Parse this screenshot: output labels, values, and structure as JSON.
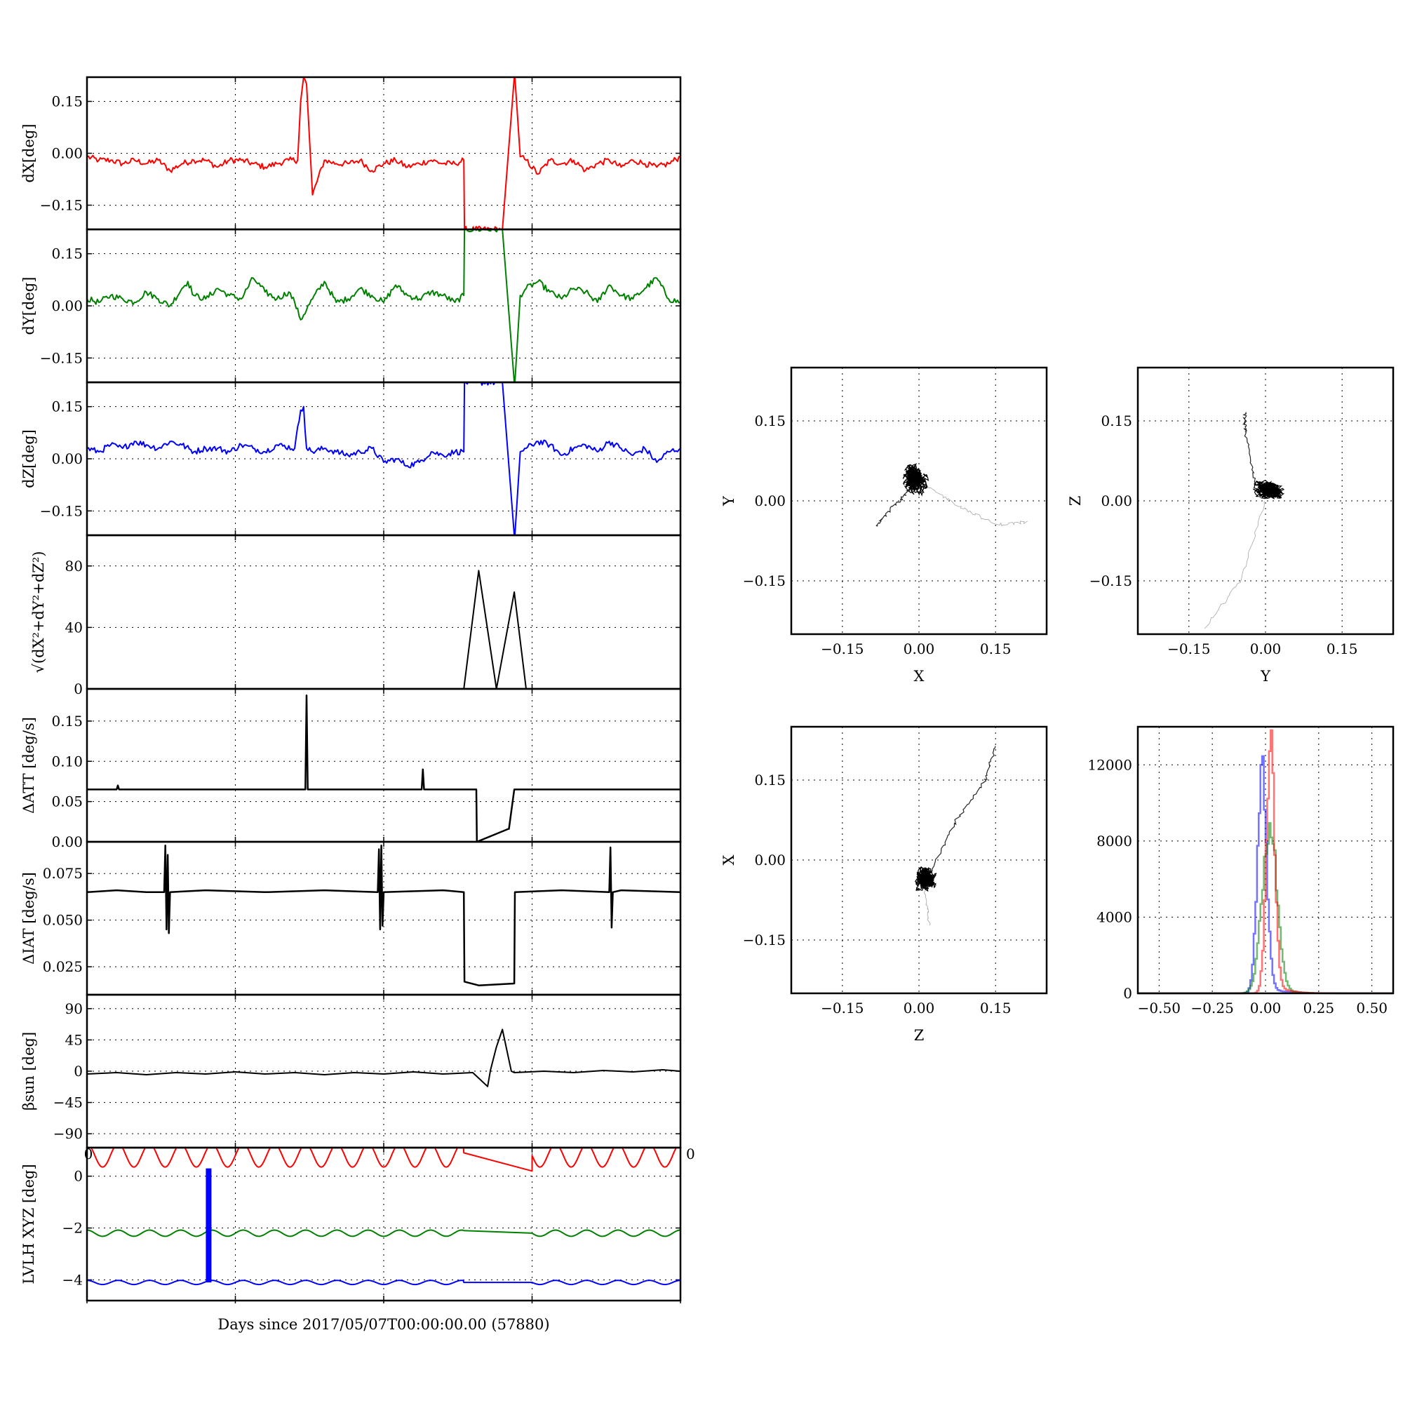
{
  "figure": {
    "xlabel": "Days since 2017/05/07T00:00:00.00 (57880)"
  },
  "chart_data": [
    {
      "type": "line",
      "ylabel": "dX[deg]",
      "ylim": [
        -0.22,
        0.22
      ],
      "yticks": [
        "0.15",
        "0.00",
        "−0.15"
      ],
      "yticks_values": [
        0.15,
        0.0,
        -0.15
      ],
      "xlim": [
        0,
        1
      ],
      "color": "#ff0000",
      "series": [
        {
          "x": [
            0.0,
            0.02,
            0.04,
            0.06,
            0.08,
            0.1,
            0.12,
            0.14,
            0.16,
            0.18,
            0.2,
            0.22,
            0.24,
            0.26,
            0.28,
            0.3,
            0.32,
            0.34,
            0.355,
            0.36,
            0.365,
            0.37,
            0.38,
            0.4,
            0.42,
            0.44,
            0.46,
            0.48,
            0.5,
            0.52,
            0.54,
            0.56,
            0.58,
            0.6,
            0.62,
            0.635,
            0.636,
            0.7,
            0.72,
            0.721,
            0.73,
            0.74,
            0.76,
            0.78,
            0.8,
            0.82,
            0.84,
            0.86,
            0.88,
            0.9,
            0.92,
            0.94,
            0.96,
            0.98,
            1.0
          ],
          "y": [
            -0.01,
            -0.02,
            -0.02,
            -0.03,
            -0.02,
            -0.03,
            -0.02,
            -0.05,
            -0.03,
            -0.02,
            -0.02,
            -0.04,
            -0.02,
            -0.02,
            -0.03,
            -0.04,
            -0.03,
            -0.02,
            -0.02,
            0.15,
            0.22,
            0.2,
            -0.12,
            -0.02,
            -0.03,
            -0.03,
            -0.02,
            -0.05,
            -0.03,
            -0.02,
            -0.04,
            -0.03,
            -0.02,
            -0.03,
            -0.03,
            -0.02,
            -0.22,
            -0.22,
            0.22,
            0.22,
            -0.01,
            -0.02,
            -0.06,
            -0.02,
            -0.03,
            -0.02,
            -0.05,
            -0.03,
            -0.02,
            -0.04,
            -0.02,
            -0.03,
            -0.04,
            -0.03,
            -0.01
          ]
        }
      ]
    },
    {
      "type": "line",
      "ylabel": "dY[deg]",
      "ylim": [
        -0.22,
        0.22
      ],
      "yticks": [
        "0.15",
        "0.00",
        "−0.15"
      ],
      "yticks_values": [
        0.15,
        0.0,
        -0.15
      ],
      "xlim": [
        0,
        1
      ],
      "color": "#008000",
      "series": [
        {
          "x": [
            0.0,
            0.02,
            0.04,
            0.06,
            0.08,
            0.1,
            0.12,
            0.14,
            0.16,
            0.17,
            0.18,
            0.2,
            0.22,
            0.24,
            0.26,
            0.28,
            0.3,
            0.32,
            0.34,
            0.35,
            0.36,
            0.38,
            0.4,
            0.42,
            0.44,
            0.46,
            0.48,
            0.5,
            0.52,
            0.54,
            0.56,
            0.58,
            0.6,
            0.62,
            0.635,
            0.636,
            0.7,
            0.72,
            0.721,
            0.73,
            0.74,
            0.76,
            0.78,
            0.8,
            0.82,
            0.84,
            0.86,
            0.88,
            0.9,
            0.92,
            0.94,
            0.96,
            0.98,
            1.0
          ],
          "y": [
            0.02,
            0.01,
            0.03,
            0.02,
            0.01,
            0.04,
            0.02,
            0.0,
            0.05,
            0.07,
            0.03,
            0.02,
            0.05,
            0.03,
            0.02,
            0.08,
            0.04,
            0.02,
            0.04,
            0.01,
            -0.04,
            0.02,
            0.07,
            0.01,
            0.02,
            0.05,
            0.03,
            0.01,
            0.06,
            0.03,
            0.02,
            0.04,
            0.03,
            0.01,
            0.03,
            0.22,
            0.22,
            -0.22,
            -0.22,
            0.03,
            0.05,
            0.07,
            0.04,
            0.02,
            0.05,
            0.04,
            0.01,
            0.06,
            0.03,
            0.02,
            0.05,
            0.08,
            0.02,
            0.01
          ]
        }
      ]
    },
    {
      "type": "line",
      "ylabel": "dZ[deg]",
      "ylim": [
        -0.22,
        0.22
      ],
      "yticks": [
        "0.15",
        "0.00",
        "−0.15"
      ],
      "yticks_values": [
        0.15,
        0.0,
        -0.15
      ],
      "xlim": [
        0,
        1
      ],
      "color": "#0000ff",
      "series": [
        {
          "x": [
            0.0,
            0.02,
            0.04,
            0.06,
            0.08,
            0.1,
            0.12,
            0.14,
            0.16,
            0.18,
            0.2,
            0.22,
            0.24,
            0.26,
            0.28,
            0.3,
            0.32,
            0.35,
            0.36,
            0.365,
            0.37,
            0.38,
            0.4,
            0.42,
            0.44,
            0.46,
            0.48,
            0.5,
            0.52,
            0.54,
            0.56,
            0.58,
            0.6,
            0.62,
            0.635,
            0.636,
            0.7,
            0.72,
            0.721,
            0.73,
            0.74,
            0.76,
            0.78,
            0.8,
            0.82,
            0.84,
            0.86,
            0.88,
            0.9,
            0.92,
            0.94,
            0.96,
            0.98,
            1.0
          ],
          "y": [
            0.03,
            0.02,
            0.04,
            0.03,
            0.05,
            0.04,
            0.03,
            0.05,
            0.04,
            0.02,
            0.03,
            0.03,
            0.02,
            0.04,
            0.03,
            0.02,
            0.04,
            0.03,
            0.14,
            0.15,
            0.03,
            0.02,
            0.03,
            0.02,
            0.01,
            0.02,
            0.03,
            -0.01,
            0.0,
            -0.02,
            -0.01,
            0.02,
            0.01,
            0.02,
            0.02,
            0.22,
            0.22,
            -0.22,
            -0.22,
            0.02,
            0.03,
            0.05,
            0.04,
            0.01,
            0.03,
            0.04,
            0.02,
            0.05,
            0.03,
            0.01,
            0.03,
            -0.01,
            0.02,
            0.03
          ]
        }
      ]
    },
    {
      "type": "line",
      "ylabel": "√(dX²+dY²+dZ²)",
      "ylim": [
        0,
        100
      ],
      "yticks": [
        "80",
        "40",
        "0"
      ],
      "yticks_values": [
        80,
        40,
        0
      ],
      "xlim": [
        0,
        1
      ],
      "color": "#000000",
      "series": [
        {
          "x": [
            0.0,
            0.635,
            0.66,
            0.69,
            0.72,
            0.74,
            1.0
          ],
          "y": [
            0,
            0,
            77,
            0,
            63,
            0,
            0
          ]
        }
      ]
    },
    {
      "type": "line",
      "ylabel": "ΔATT [deg/s]",
      "ylim": [
        0,
        0.19
      ],
      "yticks": [
        "0.15",
        "0.10",
        "0.05",
        "0.00"
      ],
      "yticks_values": [
        0.15,
        0.1,
        0.05,
        0.0
      ],
      "xlim": [
        0,
        1
      ],
      "color": "#000000",
      "series": [
        {
          "x": [
            0.0,
            0.05,
            0.052,
            0.054,
            0.1,
            0.2,
            0.3,
            0.368,
            0.37,
            0.372,
            0.4,
            0.5,
            0.564,
            0.566,
            0.568,
            0.6,
            0.656,
            0.657,
            0.71,
            0.711,
            0.72,
            0.8,
            0.9,
            1.0
          ],
          "y": [
            0.065,
            0.065,
            0.07,
            0.065,
            0.065,
            0.065,
            0.065,
            0.065,
            0.182,
            0.065,
            0.065,
            0.065,
            0.065,
            0.09,
            0.065,
            0.065,
            0.065,
            0.0,
            0.016,
            0.016,
            0.065,
            0.065,
            0.065,
            0.065
          ]
        }
      ]
    },
    {
      "type": "line",
      "ylabel": "ΔIAT [deg/s]",
      "ylim": [
        0.01,
        0.092
      ],
      "yticks": [
        "0.075",
        "0.050",
        "0.025"
      ],
      "yticks_values": [
        0.075,
        0.05,
        0.025
      ],
      "xlim": [
        0,
        1
      ],
      "color": "#000000",
      "series": [
        {
          "x": [
            0.0,
            0.05,
            0.1,
            0.13,
            0.132,
            0.134,
            0.136,
            0.138,
            0.14,
            0.2,
            0.3,
            0.4,
            0.49,
            0.492,
            0.494,
            0.496,
            0.498,
            0.5,
            0.6,
            0.635,
            0.636,
            0.66,
            0.72,
            0.721,
            0.8,
            0.88,
            0.882,
            0.884,
            0.886,
            0.9,
            1.0
          ],
          "y": [
            0.065,
            0.066,
            0.065,
            0.065,
            0.09,
            0.045,
            0.085,
            0.043,
            0.065,
            0.066,
            0.065,
            0.066,
            0.065,
            0.088,
            0.045,
            0.09,
            0.047,
            0.065,
            0.066,
            0.065,
            0.017,
            0.015,
            0.016,
            0.065,
            0.066,
            0.065,
            0.089,
            0.046,
            0.065,
            0.066,
            0.065
          ]
        }
      ]
    },
    {
      "type": "line",
      "ylabel": "βsun [deg]",
      "ylim": [
        -110,
        110
      ],
      "yticks": [
        "90",
        "45",
        "0",
        "−45",
        "−90"
      ],
      "yticks_values": [
        90,
        45,
        0,
        -45,
        -90
      ],
      "xlim": [
        0,
        1
      ],
      "color": "#000000",
      "series": [
        {
          "x": [
            0.0,
            0.05,
            0.1,
            0.15,
            0.2,
            0.25,
            0.3,
            0.35,
            0.4,
            0.45,
            0.5,
            0.55,
            0.6,
            0.65,
            0.675,
            0.68,
            0.69,
            0.7,
            0.715,
            0.72,
            0.77,
            0.82,
            0.87,
            0.92,
            0.97,
            1.0
          ],
          "y": [
            -4,
            -2,
            -5,
            -2,
            -4,
            -1,
            -4,
            -2,
            -5,
            -2,
            -4,
            -1,
            -4,
            -2,
            -22,
            2,
            35,
            60,
            0,
            -2,
            0,
            -2,
            1,
            -1,
            2,
            0
          ]
        }
      ]
    },
    {
      "type": "line",
      "ylabel": "LVLH XYZ [deg]",
      "ylim": [
        -4.8,
        1.1
      ],
      "yticks": [
        "0",
        "−2",
        "−4"
      ],
      "yticks_values": [
        0,
        -2,
        -4
      ],
      "xlim": [
        0,
        1
      ],
      "series": [
        {
          "color": "#ff0000",
          "kind": "wave",
          "base": 0.8,
          "amp": 0.45,
          "gap": [
            0.635,
            0.75
          ],
          "gap_end": [
            0.9,
            0.2
          ]
        },
        {
          "color": "#008000",
          "kind": "wave",
          "base": -2.2,
          "amp": 0.12,
          "gap": [
            0.635,
            0.75
          ],
          "gap_end": [
            -2.1,
            -2.2
          ]
        },
        {
          "color": "#0000ff",
          "kind": "wave",
          "base": -4.1,
          "amp": 0.08,
          "gap": [
            0.635,
            0.75
          ],
          "gap_end": [
            -4.1,
            -4.1
          ]
        },
        {
          "color": "#0000ff",
          "kind": "spike",
          "x": 0.205,
          "y0": -4.1,
          "y1": 0.3
        }
      ]
    },
    {
      "type": "scatter",
      "xlabel": "X",
      "ylabel": "Y",
      "xlim": [
        -0.25,
        0.25
      ],
      "ylim": [
        -0.25,
        0.25
      ],
      "ticks": [
        "−0.15",
        "0.00",
        "0.15"
      ],
      "ticks_values": [
        -0.15,
        0.0,
        0.15
      ],
      "cluster": {
        "cx": -0.01,
        "cy": 0.04,
        "rx": 0.035,
        "ry": 0.045
      },
      "tails": [
        [
          [
            -0.02,
            0.02
          ],
          [
            -0.05,
            -0.01
          ],
          [
            -0.085,
            -0.05
          ]
        ],
        [
          [
            0.01,
            0.03
          ],
          [
            0.08,
            -0.01
          ],
          [
            0.15,
            -0.045
          ],
          [
            0.21,
            -0.04
          ]
        ]
      ]
    },
    {
      "type": "scatter",
      "xlabel": "Y",
      "ylabel": "Z",
      "xlim": [
        -0.25,
        0.25
      ],
      "ylim": [
        -0.25,
        0.25
      ],
      "ticks": [
        "−0.15",
        "0.00",
        "0.15"
      ],
      "ticks_values": [
        -0.15,
        0.0,
        0.15
      ],
      "cluster": {
        "cx": 0.01,
        "cy": 0.02,
        "rx": 0.045,
        "ry": 0.03
      },
      "tails": [
        [
          [
            -0.02,
            0.03
          ],
          [
            -0.04,
            0.13
          ],
          [
            -0.04,
            0.165
          ]
        ],
        [
          [
            0.0,
            0.0
          ],
          [
            -0.05,
            -0.15
          ],
          [
            -0.12,
            -0.24
          ]
        ]
      ]
    },
    {
      "type": "scatter",
      "xlabel": "Z",
      "ylabel": "X",
      "xlim": [
        -0.25,
        0.25
      ],
      "ylim": [
        -0.25,
        0.25
      ],
      "ticks": [
        "−0.15",
        "0.00",
        "0.15"
      ],
      "ticks_values": [
        -0.15,
        0.0,
        0.15
      ],
      "cluster": {
        "cx": 0.015,
        "cy": -0.035,
        "rx": 0.03,
        "ry": 0.035
      },
      "tails": [
        [
          [
            0.02,
            -0.03
          ],
          [
            0.07,
            0.07
          ],
          [
            0.13,
            0.15
          ],
          [
            0.15,
            0.215
          ]
        ],
        [
          [
            0.01,
            -0.06
          ],
          [
            0.02,
            -0.12
          ]
        ]
      ]
    },
    {
      "type": "histogram",
      "xlim": [
        -0.6,
        0.6
      ],
      "ylim": [
        0,
        14000
      ],
      "xticks": [
        "−0.50",
        "−0.25",
        "0.00",
        "0.25",
        "0.50"
      ],
      "xticks_values": [
        -0.5,
        -0.25,
        0.0,
        0.25,
        0.5
      ],
      "yticks": [
        "12000",
        "8000",
        "4000",
        "0"
      ],
      "yticks_values": [
        12000,
        8000,
        4000,
        0
      ],
      "series": [
        {
          "color": "#0000ff",
          "center": -0.02,
          "peak": 11300,
          "width": 0.022
        },
        {
          "color": "#008000",
          "center": 0.015,
          "peak": 8600,
          "width": 0.035
        },
        {
          "color": "#ff0000",
          "center": 0.02,
          "peak": 12400,
          "width": 0.02
        }
      ]
    }
  ]
}
